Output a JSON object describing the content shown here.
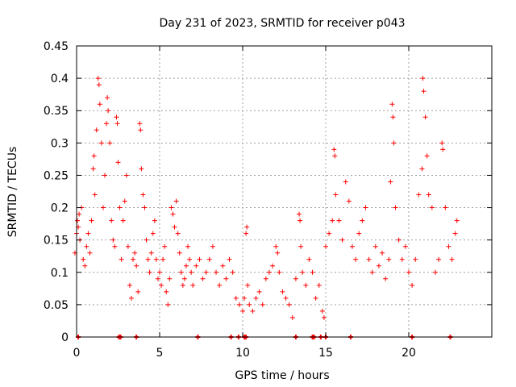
{
  "chart_data": {
    "type": "scatter",
    "title": "Day 231 of 2023, SRMTID for receiver p043",
    "xlabel": "GPS time / hours",
    "ylabel": "SRMTID / TECUs",
    "xlim": [
      0,
      25
    ],
    "ylim": [
      0,
      0.45
    ],
    "x_ticks": [
      0,
      5,
      10,
      15,
      20
    ],
    "x_tick_labels": [
      "0",
      "5",
      "10",
      "15",
      "20"
    ],
    "y_ticks": [
      0,
      0.05,
      0.1,
      0.15,
      0.2,
      0.25,
      0.3,
      0.35,
      0.4,
      0.45
    ],
    "y_tick_labels": [
      "0",
      "0.05",
      "0.1",
      "0.15",
      "0.2",
      "0.25",
      "0.3",
      "0.35",
      "0.4",
      "0.45"
    ],
    "grid": true,
    "marker": "plus",
    "series": [
      {
        "name": "SRMTID",
        "color": "#ff0000",
        "points": [
          [
            -0.1,
            0.13
          ],
          [
            0.0,
            0.16
          ],
          [
            0.05,
            0.18
          ],
          [
            0.1,
            0.17
          ],
          [
            0.15,
            0.19
          ],
          [
            0.2,
            0.15
          ],
          [
            0.3,
            0.2
          ],
          [
            0.4,
            0.12
          ],
          [
            0.5,
            0.11
          ],
          [
            0.6,
            0.14
          ],
          [
            0.7,
            0.16
          ],
          [
            0.8,
            0.13
          ],
          [
            0.9,
            0.18
          ],
          [
            1.0,
            0.26
          ],
          [
            1.05,
            0.28
          ],
          [
            1.1,
            0.22
          ],
          [
            1.2,
            0.32
          ],
          [
            1.3,
            0.4
          ],
          [
            1.35,
            0.39
          ],
          [
            1.4,
            0.36
          ],
          [
            1.5,
            0.3
          ],
          [
            1.6,
            0.2
          ],
          [
            1.7,
            0.25
          ],
          [
            1.8,
            0.33
          ],
          [
            1.85,
            0.37
          ],
          [
            1.9,
            0.35
          ],
          [
            2.0,
            0.3
          ],
          [
            2.1,
            0.18
          ],
          [
            2.2,
            0.15
          ],
          [
            2.3,
            0.14
          ],
          [
            2.4,
            0.34
          ],
          [
            2.45,
            0.33
          ],
          [
            2.5,
            0.27
          ],
          [
            2.6,
            0.2
          ],
          [
            2.7,
            0.12
          ],
          [
            2.8,
            0.18
          ],
          [
            2.9,
            0.21
          ],
          [
            3.0,
            0.25
          ],
          [
            3.1,
            0.14
          ],
          [
            3.2,
            0.08
          ],
          [
            3.3,
            0.06
          ],
          [
            3.4,
            0.12
          ],
          [
            3.5,
            0.13
          ],
          [
            3.6,
            0.11
          ],
          [
            3.7,
            0.07
          ],
          [
            3.8,
            0.33
          ],
          [
            3.85,
            0.32
          ],
          [
            3.9,
            0.26
          ],
          [
            4.0,
            0.22
          ],
          [
            4.1,
            0.2
          ],
          [
            4.2,
            0.15
          ],
          [
            4.3,
            0.12
          ],
          [
            4.4,
            0.1
          ],
          [
            4.5,
            0.13
          ],
          [
            4.6,
            0.16
          ],
          [
            4.7,
            0.18
          ],
          [
            4.8,
            0.12
          ],
          [
            4.9,
            0.09
          ],
          [
            5.0,
            0.1
          ],
          [
            5.1,
            0.08
          ],
          [
            5.2,
            0.12
          ],
          [
            5.3,
            0.14
          ],
          [
            5.4,
            0.07
          ],
          [
            5.5,
            0.05
          ],
          [
            5.6,
            0.09
          ],
          [
            5.7,
            0.2
          ],
          [
            5.8,
            0.19
          ],
          [
            5.9,
            0.17
          ],
          [
            6.0,
            0.21
          ],
          [
            6.1,
            0.16
          ],
          [
            6.2,
            0.13
          ],
          [
            6.3,
            0.1
          ],
          [
            6.4,
            0.08
          ],
          [
            6.5,
            0.09
          ],
          [
            6.6,
            0.11
          ],
          [
            6.7,
            0.14
          ],
          [
            6.8,
            0.12
          ],
          [
            6.9,
            0.1
          ],
          [
            7.0,
            0.08
          ],
          [
            7.2,
            0.11
          ],
          [
            7.4,
            0.12
          ],
          [
            7.6,
            0.09
          ],
          [
            7.8,
            0.1
          ],
          [
            8.0,
            0.12
          ],
          [
            8.2,
            0.14
          ],
          [
            8.4,
            0.1
          ],
          [
            8.6,
            0.08
          ],
          [
            8.8,
            0.11
          ],
          [
            9.0,
            0.09
          ],
          [
            9.2,
            0.12
          ],
          [
            9.4,
            0.1
          ],
          [
            9.6,
            0.06
          ],
          [
            9.8,
            0.05
          ],
          [
            10.0,
            0.04
          ],
          [
            10.1,
            0.06
          ],
          [
            10.2,
            0.16
          ],
          [
            10.25,
            0.17
          ],
          [
            10.3,
            0.08
          ],
          [
            10.4,
            0.05
          ],
          [
            10.6,
            0.04
          ],
          [
            10.8,
            0.06
          ],
          [
            11.0,
            0.07
          ],
          [
            11.2,
            0.05
          ],
          [
            11.4,
            0.09
          ],
          [
            11.6,
            0.1
          ],
          [
            11.8,
            0.11
          ],
          [
            12.0,
            0.14
          ],
          [
            12.1,
            0.13
          ],
          [
            12.2,
            0.1
          ],
          [
            12.4,
            0.07
          ],
          [
            12.6,
            0.06
          ],
          [
            12.8,
            0.05
          ],
          [
            13.0,
            0.03
          ],
          [
            13.2,
            0.09
          ],
          [
            13.4,
            0.19
          ],
          [
            13.45,
            0.18
          ],
          [
            13.5,
            0.14
          ],
          [
            13.6,
            0.1
          ],
          [
            13.8,
            0.08
          ],
          [
            14.0,
            0.12
          ],
          [
            14.2,
            0.1
          ],
          [
            14.4,
            0.06
          ],
          [
            14.6,
            0.08
          ],
          [
            14.8,
            0.04
          ],
          [
            14.9,
            0.03
          ],
          [
            15.0,
            0.14
          ],
          [
            15.2,
            0.16
          ],
          [
            15.4,
            0.18
          ],
          [
            15.5,
            0.29
          ],
          [
            15.55,
            0.28
          ],
          [
            15.6,
            0.22
          ],
          [
            15.8,
            0.18
          ],
          [
            16.0,
            0.15
          ],
          [
            16.2,
            0.24
          ],
          [
            16.4,
            0.21
          ],
          [
            16.6,
            0.14
          ],
          [
            16.8,
            0.12
          ],
          [
            17.0,
            0.16
          ],
          [
            17.2,
            0.18
          ],
          [
            17.4,
            0.2
          ],
          [
            17.6,
            0.12
          ],
          [
            17.8,
            0.1
          ],
          [
            18.0,
            0.14
          ],
          [
            18.2,
            0.11
          ],
          [
            18.4,
            0.13
          ],
          [
            18.6,
            0.09
          ],
          [
            18.8,
            0.12
          ],
          [
            18.9,
            0.24
          ],
          [
            19.0,
            0.36
          ],
          [
            19.05,
            0.34
          ],
          [
            19.1,
            0.3
          ],
          [
            19.2,
            0.2
          ],
          [
            19.4,
            0.15
          ],
          [
            19.6,
            0.12
          ],
          [
            19.8,
            0.14
          ],
          [
            20.0,
            0.1
          ],
          [
            20.2,
            0.08
          ],
          [
            20.4,
            0.12
          ],
          [
            20.6,
            0.22
          ],
          [
            20.8,
            0.26
          ],
          [
            20.85,
            0.4
          ],
          [
            20.9,
            0.38
          ],
          [
            21.0,
            0.34
          ],
          [
            21.1,
            0.28
          ],
          [
            21.2,
            0.22
          ],
          [
            21.4,
            0.2
          ],
          [
            21.6,
            0.1
          ],
          [
            21.8,
            0.12
          ],
          [
            22.0,
            0.3
          ],
          [
            22.05,
            0.29
          ],
          [
            22.2,
            0.2
          ],
          [
            22.4,
            0.14
          ],
          [
            22.6,
            0.12
          ],
          [
            22.8,
            0.16
          ],
          [
            22.9,
            0.18
          ]
        ]
      }
    ],
    "zero_markers_x": [
      0.1,
      2.55,
      2.65,
      3.6,
      7.3,
      9.3,
      9.75,
      10.1,
      10.2,
      13.2,
      14.2,
      14.3,
      14.7,
      15.0,
      16.5,
      20.2,
      22.5
    ]
  }
}
